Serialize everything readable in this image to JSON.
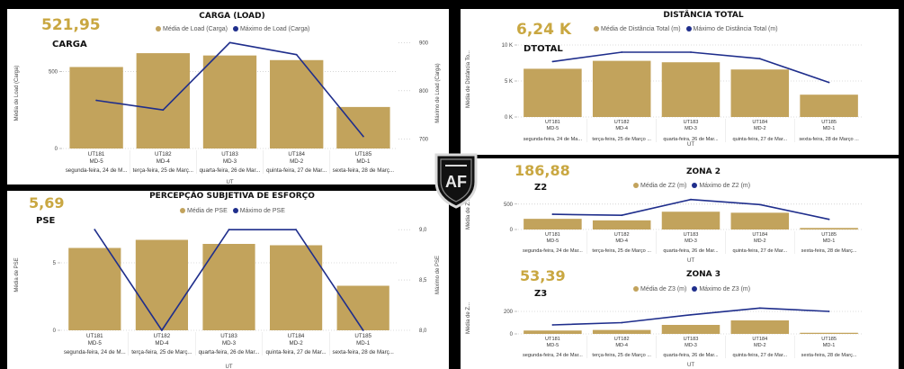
{
  "colors": {
    "bar": "#c2a35c",
    "line": "#1f2e8c",
    "kpi": "#c9a741",
    "grid": "#bdbdbd"
  },
  "logo_text": "AF",
  "panels": {
    "carga": {
      "kpi_value": "521,95",
      "kpi_label": "CARGA",
      "title": "CARGA (LOAD)",
      "legend": [
        "Média de Load (Carga)",
        "Máximo de Load (Carga)"
      ]
    },
    "pse": {
      "kpi_value": "5,69",
      "kpi_label": "PSE",
      "title": "PERCEPÇÃO SUBJETIVA DE ESFORÇO",
      "legend": [
        "Média de PSE",
        "Máximo de PSE"
      ]
    },
    "dtotal": {
      "kpi_value": "6,24 K",
      "kpi_label": "DTOTAL",
      "title": "DISTÂNCIA TOTAL",
      "legend": [
        "Média de Distância Total (m)",
        "Máximo de Distância Total (m)"
      ]
    },
    "z2": {
      "kpi_value": "186,88",
      "kpi_label": "Z2",
      "title": "ZONA 2",
      "legend": [
        "Média de Z2 (m)",
        "Máximo de Z2 (m)"
      ]
    },
    "z3": {
      "kpi_value": "53,39",
      "kpi_label": "Z3",
      "title": "ZONA 3",
      "legend": [
        "Média de Z3 (m)",
        "Máximo de Z3 (m)"
      ]
    }
  },
  "chart_data": [
    {
      "id": "carga",
      "type": "bar+line",
      "title": "CARGA (LOAD)",
      "categories": [
        [
          "UT181",
          "MD-5",
          "segunda-feira, 24 de M..."
        ],
        [
          "UT182",
          "MD-4",
          "terça-feira, 25 de Març..."
        ],
        [
          "UT183",
          "MD-3",
          "quarta-feira, 26 de Mar..."
        ],
        [
          "UT184",
          "MD-2",
          "quinta-feira, 27 de Mar..."
        ],
        [
          "UT185",
          "MD-1",
          "sexta-feira, 28 de Març..."
        ]
      ],
      "xlabel": "UT",
      "ylabel": "Média de Load (Carga)",
      "y2label": "Máximo de Load (Carga)",
      "ylim": [
        0,
        720
      ],
      "yticks": [
        {
          "v": 0,
          "t": "0"
        },
        {
          "v": 500,
          "t": "500"
        }
      ],
      "y2lim": [
        680,
        910
      ],
      "y2ticks": [
        {
          "v": 700,
          "t": "700"
        },
        {
          "v": 800,
          "t": "800"
        },
        {
          "v": 900,
          "t": "900"
        }
      ],
      "bar_series": {
        "name": "Média de Load (Carga)",
        "values": [
          530,
          620,
          605,
          575,
          270
        ]
      },
      "line_series": {
        "name": "Máximo de Load (Carga)",
        "values": [
          780,
          760,
          900,
          875,
          705
        ]
      }
    },
    {
      "id": "pse",
      "type": "bar+line",
      "title": "PERCEPÇÃO SUBJETIVA DE ESFORÇO",
      "categories": [
        [
          "UT181",
          "MD-5",
          "segunda-feira, 24 de M..."
        ],
        [
          "UT182",
          "MD-4",
          "terça-feira, 25 de Març..."
        ],
        [
          "UT183",
          "MD-3",
          "quarta-feira, 26 de Mar..."
        ],
        [
          "UT184",
          "MD-2",
          "quinta-feira, 27 de Mar..."
        ],
        [
          "UT185",
          "MD-1",
          "sexta-feira, 28 de Març..."
        ]
      ],
      "xlabel": "UT",
      "ylabel": "Média de PSE",
      "y2label": "Máximo de PSE",
      "ylim": [
        0,
        8.2
      ],
      "yticks": [
        {
          "v": 0,
          "t": "0"
        },
        {
          "v": 5,
          "t": "5"
        }
      ],
      "y2lim": [
        8.0,
        9.1
      ],
      "y2ticks": [
        {
          "v": 8.0,
          "t": "8,0"
        },
        {
          "v": 8.5,
          "t": "8,5"
        },
        {
          "v": 9.0,
          "t": "9,0"
        }
      ],
      "bar_series": {
        "name": "Média de PSE",
        "values": [
          6.1,
          6.7,
          6.4,
          6.3,
          3.3
        ]
      },
      "line_series": {
        "name": "Máximo de PSE",
        "values": [
          9.0,
          8.0,
          9.0,
          9.0,
          8.0
        ]
      }
    },
    {
      "id": "dtotal",
      "type": "bar+line",
      "title": "DISTÂNCIA TOTAL",
      "categories": [
        [
          "UT181",
          "MD-5",
          "segunda-feira, 24 de Ma..."
        ],
        [
          "UT182",
          "MD-4",
          "terça-feira, 25 de Março ..."
        ],
        [
          "UT183",
          "MD-3",
          "quarta-feira, 26 de Mar..."
        ],
        [
          "UT184",
          "MD-2",
          "quinta-feira, 27 de Mar..."
        ],
        [
          "UT185",
          "MD-1",
          "sexta-feira, 28 de Março ..."
        ]
      ],
      "xlabel": "UT",
      "ylabel": "Média de Distância To...",
      "ylim": [
        0,
        10500
      ],
      "yticks": [
        {
          "v": 0,
          "t": "0 K"
        },
        {
          "v": 5000,
          "t": "5 K"
        },
        {
          "v": 10000,
          "t": "10 K"
        }
      ],
      "bar_series": {
        "name": "Média de Distância Total (m)",
        "values": [
          6700,
          7800,
          7600,
          6600,
          3100
        ]
      },
      "line_series": {
        "name": "Máximo de Distância Total (m)",
        "values": [
          7700,
          9000,
          9000,
          8100,
          4800
        ]
      }
    },
    {
      "id": "z2",
      "type": "bar+line",
      "title": "ZONA 2",
      "categories": [
        [
          "UT181",
          "MD-5",
          "segunda-feira, 24 de Mar..."
        ],
        [
          "UT182",
          "MD-4",
          "terça-feira, 25 de Março ..."
        ],
        [
          "UT183",
          "MD-3",
          "quarta-feira, 26 de Mar..."
        ],
        [
          "UT184",
          "MD-2",
          "quinta-feira, 27 de Mar..."
        ],
        [
          "UT185",
          "MD-1",
          "sexta-feira, 28 de Març..."
        ]
      ],
      "xlabel": "UT",
      "ylabel": "Média de Z...",
      "ylim": [
        0,
        620
      ],
      "yticks": [
        {
          "v": 0,
          "t": "0"
        },
        {
          "v": 500,
          "t": "500"
        }
      ],
      "bar_series": {
        "name": "Média de Z2 (m)",
        "values": [
          210,
          180,
          350,
          330,
          30
        ]
      },
      "line_series": {
        "name": "Máximo de Z2 (m)",
        "values": [
          300,
          280,
          590,
          490,
          200
        ]
      }
    },
    {
      "id": "z3",
      "type": "bar+line",
      "title": "ZONA 3",
      "categories": [
        [
          "UT181",
          "MD-5",
          "segunda-feira, 24 de Mar..."
        ],
        [
          "UT182",
          "MD-4",
          "terça-feira, 25 de Março ..."
        ],
        [
          "UT183",
          "MD-3",
          "quarta-feira, 26 de Mar..."
        ],
        [
          "UT184",
          "MD-2",
          "quinta-feira, 27 de Mar..."
        ],
        [
          "UT185",
          "MD-1",
          "sexta-feira, 28 de Març..."
        ]
      ],
      "xlabel": "UT",
      "ylabel": "Média de Z...",
      "ylim": [
        0,
        280
      ],
      "yticks": [
        {
          "v": 0,
          "t": "0"
        },
        {
          "v": 200,
          "t": "200"
        }
      ],
      "bar_series": {
        "name": "Média de Z3 (m)",
        "values": [
          30,
          35,
          80,
          120,
          10
        ]
      },
      "line_series": {
        "name": "Máximo de Z3 (m)",
        "values": [
          80,
          100,
          170,
          230,
          200
        ]
      }
    }
  ]
}
